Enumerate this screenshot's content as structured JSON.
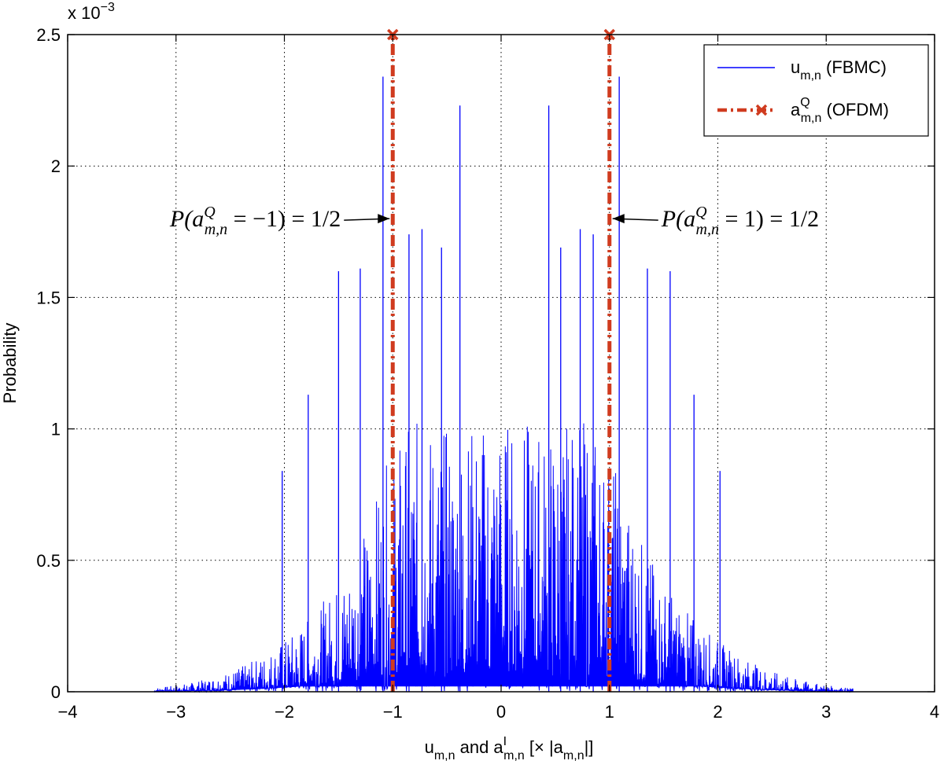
{
  "chart_data": {
    "type": "line",
    "ylabel": "Probability",
    "xlabel": {
      "main": "u",
      "main_sub": "m,n",
      "mid": " and a",
      "mid_sup": "I",
      "mid_sub": "m,n",
      "tail": "  [× |a",
      "tail_sub": "m,n",
      "end": "|]"
    },
    "y_exponent": {
      "base": "x 10",
      "power": "−3"
    },
    "xlim": [
      -4,
      4
    ],
    "ylim": [
      0,
      2.5
    ],
    "x_ticks": [
      -4,
      -3,
      -2,
      -1,
      0,
      1,
      2,
      3,
      4
    ],
    "x_tick_labels": [
      "−4",
      "−3",
      "−2",
      "−1",
      "0",
      "1",
      "2",
      "3",
      "4"
    ],
    "y_ticks": [
      0,
      0.5,
      1,
      1.5,
      2,
      2.5
    ],
    "y_tick_labels": [
      "0",
      "0.5",
      "1",
      "1.5",
      "2",
      "2.5"
    ],
    "grid": true,
    "legend_position": "top-right",
    "series": [
      {
        "name": {
          "base": "u",
          "sub": "m,n",
          "rest": " (FBMC)"
        },
        "color": "#0000ff",
        "style": "solid",
        "envelope_peaks": [
          {
            "x": -1.09,
            "y": 2.34
          },
          {
            "x": 1.09,
            "y": 2.34
          },
          {
            "x": -0.38,
            "y": 2.23
          },
          {
            "x": 0.44,
            "y": 2.23
          },
          {
            "x": -0.73,
            "y": 1.76
          },
          {
            "x": 0.73,
            "y": 1.76
          },
          {
            "x": -0.85,
            "y": 1.74
          },
          {
            "x": 0.85,
            "y": 1.74
          },
          {
            "x": -0.55,
            "y": 1.69
          },
          {
            "x": 0.55,
            "y": 1.69
          },
          {
            "x": -1.3,
            "y": 1.61
          },
          {
            "x": 1.35,
            "y": 1.61
          },
          {
            "x": -1.5,
            "y": 1.6
          },
          {
            "x": 1.56,
            "y": 1.6
          },
          {
            "x": -1.78,
            "y": 1.13
          },
          {
            "x": 1.78,
            "y": 1.13
          },
          {
            "x": -2.02,
            "y": 0.84
          },
          {
            "x": 2.02,
            "y": 0.84
          }
        ],
        "x_support": [
          -3.2,
          3.25
        ]
      },
      {
        "name": {
          "base": "a",
          "sup": "Q",
          "sub": "m,n",
          "rest": " (OFDM)"
        },
        "color": "#d03b1f",
        "style": "dash-dot",
        "marker": "x",
        "x": [
          -1,
          1
        ],
        "y": [
          2.5,
          2.5
        ]
      }
    ],
    "annotations": [
      {
        "text_left": "P(a",
        "sup": "Q",
        "sub": "m,n",
        "text_right": " = −1) = 1/2",
        "points_to": {
          "x": -1,
          "y": 1.8
        }
      },
      {
        "text_left": "P(a",
        "sup": "Q",
        "sub": "m,n",
        "text_right": " = 1) = 1/2",
        "points_to": {
          "x": 1,
          "y": 1.8
        }
      }
    ]
  }
}
